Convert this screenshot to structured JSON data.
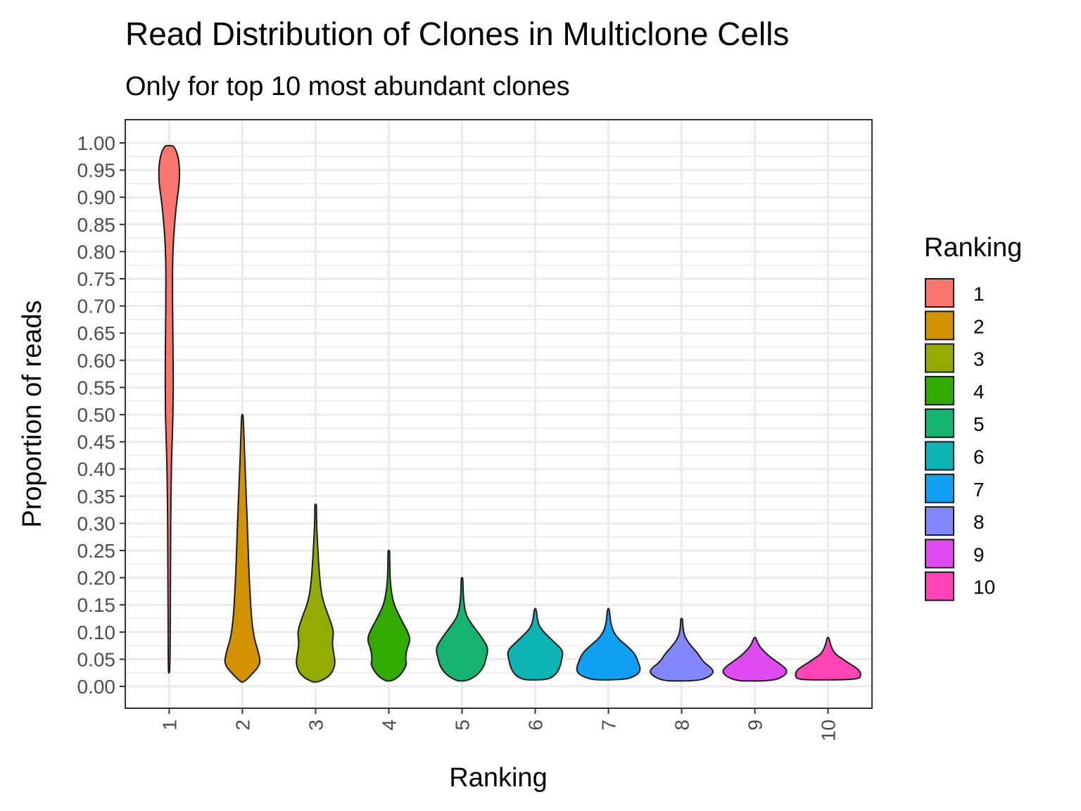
{
  "chart_data": {
    "type": "violin",
    "title": "Read Distribution of Clones in Multiclone Cells",
    "subtitle": "Only for top 10 most abundant clones",
    "xlabel": "Ranking",
    "ylabel": "Proportion of reads",
    "ylim": [
      -0.04,
      1.04
    ],
    "yticks": [
      "0.00",
      "0.05",
      "0.10",
      "0.15",
      "0.20",
      "0.25",
      "0.30",
      "0.35",
      "0.40",
      "0.45",
      "0.50",
      "0.55",
      "0.60",
      "0.65",
      "0.70",
      "0.75",
      "0.80",
      "0.85",
      "0.90",
      "0.95",
      "1.00"
    ],
    "categories": [
      "1",
      "2",
      "3",
      "4",
      "5",
      "6",
      "7",
      "8",
      "9",
      "10"
    ],
    "grid": true,
    "legend": {
      "title": "Ranking",
      "position": "right"
    },
    "series": [
      {
        "name": "1",
        "color": "#F8766D",
        "min": 0.025,
        "max": 0.995,
        "profile": [
          [
            0.025,
            0.03
          ],
          [
            0.2,
            0.035
          ],
          [
            0.4,
            0.06
          ],
          [
            0.5,
            0.12
          ],
          [
            0.6,
            0.12
          ],
          [
            0.7,
            0.1
          ],
          [
            0.8,
            0.1
          ],
          [
            0.88,
            0.2
          ],
          [
            0.93,
            0.32
          ],
          [
            0.97,
            0.3
          ],
          [
            0.995,
            0.15
          ]
        ]
      },
      {
        "name": "2",
        "color": "#D39200",
        "min": 0.008,
        "max": 0.5,
        "profile": [
          [
            0.008,
            0.05
          ],
          [
            0.02,
            0.25
          ],
          [
            0.04,
            0.55
          ],
          [
            0.06,
            0.5
          ],
          [
            0.1,
            0.3
          ],
          [
            0.2,
            0.2
          ],
          [
            0.3,
            0.15
          ],
          [
            0.4,
            0.08
          ],
          [
            0.5,
            0.02
          ]
        ]
      },
      {
        "name": "3",
        "color": "#93AA00",
        "min": 0.008,
        "max": 0.335,
        "profile": [
          [
            0.008,
            0.1
          ],
          [
            0.02,
            0.45
          ],
          [
            0.04,
            0.6
          ],
          [
            0.06,
            0.55
          ],
          [
            0.08,
            0.5
          ],
          [
            0.1,
            0.55
          ],
          [
            0.12,
            0.45
          ],
          [
            0.16,
            0.2
          ],
          [
            0.2,
            0.12
          ],
          [
            0.25,
            0.07
          ],
          [
            0.3,
            0.02
          ],
          [
            0.335,
            0.01
          ]
        ]
      },
      {
        "name": "4",
        "color": "#33AA00",
        "min": 0.01,
        "max": 0.25,
        "profile": [
          [
            0.01,
            0.1
          ],
          [
            0.02,
            0.35
          ],
          [
            0.04,
            0.55
          ],
          [
            0.05,
            0.5
          ],
          [
            0.07,
            0.55
          ],
          [
            0.085,
            0.65
          ],
          [
            0.1,
            0.58
          ],
          [
            0.12,
            0.4
          ],
          [
            0.15,
            0.15
          ],
          [
            0.18,
            0.06
          ],
          [
            0.21,
            0.03
          ],
          [
            0.25,
            0.015
          ]
        ]
      },
      {
        "name": "5",
        "color": "#14B36E",
        "min": 0.01,
        "max": 0.2,
        "profile": [
          [
            0.01,
            0.15
          ],
          [
            0.02,
            0.45
          ],
          [
            0.035,
            0.65
          ],
          [
            0.05,
            0.72
          ],
          [
            0.07,
            0.8
          ],
          [
            0.09,
            0.6
          ],
          [
            0.11,
            0.35
          ],
          [
            0.13,
            0.12
          ],
          [
            0.16,
            0.04
          ],
          [
            0.2,
            0.01
          ]
        ]
      },
      {
        "name": "6",
        "color": "#0EB4B4",
        "min": 0.012,
        "max": 0.143,
        "profile": [
          [
            0.012,
            0.35
          ],
          [
            0.02,
            0.6
          ],
          [
            0.035,
            0.75
          ],
          [
            0.05,
            0.8
          ],
          [
            0.065,
            0.85
          ],
          [
            0.08,
            0.6
          ],
          [
            0.1,
            0.25
          ],
          [
            0.115,
            0.08
          ],
          [
            0.143,
            0.01
          ]
        ]
      },
      {
        "name": "7",
        "color": "#11A0F4",
        "min": 0.012,
        "max": 0.143,
        "profile": [
          [
            0.012,
            0.5
          ],
          [
            0.02,
            0.85
          ],
          [
            0.03,
            0.98
          ],
          [
            0.045,
            0.9
          ],
          [
            0.06,
            0.8
          ],
          [
            0.075,
            0.55
          ],
          [
            0.09,
            0.25
          ],
          [
            0.11,
            0.08
          ],
          [
            0.143,
            0.01
          ]
        ]
      },
      {
        "name": "8",
        "color": "#8187FF",
        "min": 0.01,
        "max": 0.125,
        "profile": [
          [
            0.01,
            0.55
          ],
          [
            0.02,
            0.9
          ],
          [
            0.03,
            0.98
          ],
          [
            0.045,
            0.65
          ],
          [
            0.06,
            0.5
          ],
          [
            0.07,
            0.35
          ],
          [
            0.085,
            0.15
          ],
          [
            0.1,
            0.05
          ],
          [
            0.125,
            0.01
          ]
        ]
      },
      {
        "name": "9",
        "color": "#E04AF1",
        "min": 0.01,
        "max": 0.09,
        "profile": [
          [
            0.01,
            0.55
          ],
          [
            0.02,
            0.92
          ],
          [
            0.03,
            0.98
          ],
          [
            0.04,
            0.8
          ],
          [
            0.05,
            0.55
          ],
          [
            0.06,
            0.35
          ],
          [
            0.075,
            0.12
          ],
          [
            0.09,
            0.01
          ]
        ]
      },
      {
        "name": "10",
        "color": "#FF45B5",
        "min": 0.012,
        "max": 0.09,
        "profile": [
          [
            0.012,
            0.9
          ],
          [
            0.02,
            1.0
          ],
          [
            0.03,
            0.95
          ],
          [
            0.04,
            0.7
          ],
          [
            0.05,
            0.45
          ],
          [
            0.06,
            0.2
          ],
          [
            0.075,
            0.08
          ],
          [
            0.09,
            0.01
          ]
        ]
      }
    ]
  }
}
